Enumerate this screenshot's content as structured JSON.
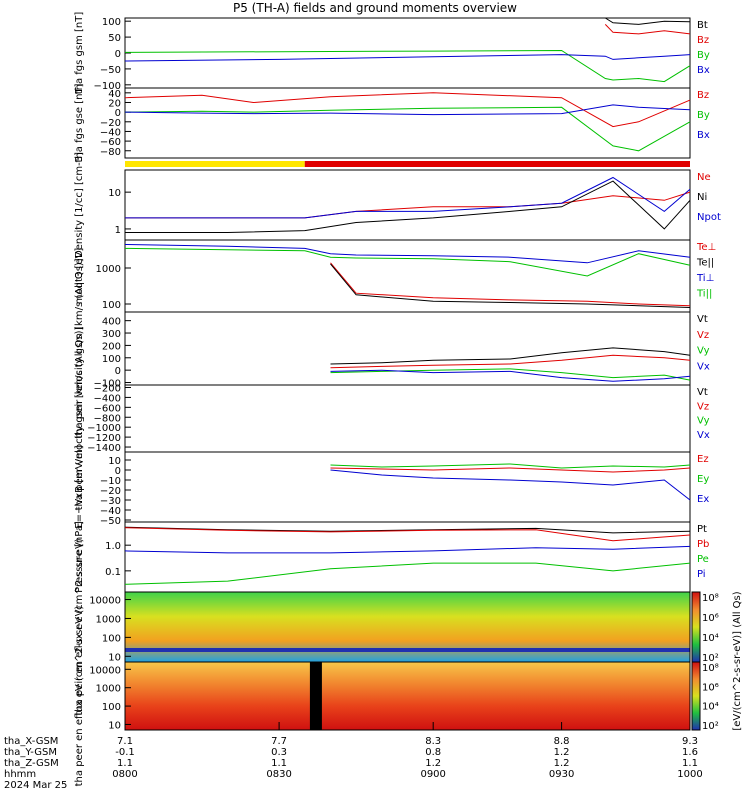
{
  "title": "P5 (TH-A) fields and ground moments overview",
  "chart_data": [
    {
      "type": "line",
      "panel": "fgs_gsm",
      "ylabel": "tha fgs gsm [nT]",
      "yticks": [
        "100",
        "50",
        "0",
        "−50",
        "−100"
      ],
      "ylim": [
        -110,
        110
      ],
      "series": [
        {
          "name": "Bt",
          "color": "#000000",
          "x": [
            7.1,
            7.7,
            8.3,
            8.8,
            8.97,
            9.0,
            9.1,
            9.2,
            9.3
          ],
          "y": [
            null,
            null,
            null,
            null,
            120,
            95,
            90,
            100,
            98
          ]
        },
        {
          "name": "Bz",
          "color": "#e00000",
          "x": [
            7.1,
            7.7,
            8.3,
            8.8,
            8.97,
            9.0,
            9.1,
            9.2,
            9.3
          ],
          "y": [
            null,
            null,
            null,
            null,
            90,
            65,
            60,
            70,
            60
          ]
        },
        {
          "name": "By",
          "color": "#00c000",
          "x": [
            7.1,
            7.7,
            8.3,
            8.8,
            8.97,
            9.0,
            9.1,
            9.2,
            9.3
          ],
          "y": [
            2,
            4,
            6,
            8,
            -80,
            -85,
            -80,
            -90,
            -40
          ]
        },
        {
          "name": "Bx",
          "color": "#0000d0",
          "x": [
            7.1,
            7.7,
            8.3,
            8.8,
            8.97,
            9.0,
            9.1,
            9.2,
            9.3
          ],
          "y": [
            -25,
            -20,
            -12,
            -5,
            -10,
            -20,
            -15,
            -10,
            -5
          ]
        }
      ]
    },
    {
      "type": "line",
      "panel": "fgs_gse",
      "ylabel": "tha fgs gse [nT]",
      "yticks": [
        "40",
        "20",
        "0",
        "−20",
        "−40",
        "−60",
        "−80"
      ],
      "ylim": [
        -95,
        50
      ],
      "series": [
        {
          "name": "Bz",
          "color": "#e00000",
          "x": [
            7.1,
            7.4,
            7.6,
            7.9,
            8.3,
            8.8,
            9.0,
            9.1,
            9.3
          ],
          "y": [
            30,
            35,
            20,
            32,
            40,
            30,
            -30,
            -20,
            25
          ]
        },
        {
          "name": "By",
          "color": "#00c000",
          "x": [
            7.1,
            7.4,
            7.6,
            7.9,
            8.3,
            8.8,
            9.0,
            9.1,
            9.3
          ],
          "y": [
            0,
            2,
            0,
            4,
            8,
            10,
            -70,
            -80,
            -20
          ]
        },
        {
          "name": "Bx",
          "color": "#0000d0",
          "x": [
            7.1,
            7.4,
            7.6,
            7.9,
            8.3,
            8.8,
            9.0,
            9.1,
            9.3
          ],
          "y": [
            0,
            -2,
            -3,
            -2,
            -5,
            -3,
            15,
            10,
            5
          ]
        }
      ]
    },
    {
      "type": "line",
      "panel": "density",
      "ylabel": "Density [1/cc] [cm-3]",
      "scale": "log",
      "yticks": [
        "10",
        "1"
      ],
      "ylim": [
        0.5,
        40
      ],
      "series": [
        {
          "name": "Ne",
          "color": "#e00000",
          "x": [
            7.1,
            7.5,
            7.8,
            8.0,
            8.3,
            8.6,
            8.8,
            9.0,
            9.2,
            9.3
          ],
          "y": [
            2,
            2,
            2,
            3,
            4,
            4,
            5,
            8,
            6,
            10
          ]
        },
        {
          "name": "Ni",
          "color": "#000000",
          "x": [
            7.1,
            7.5,
            7.8,
            8.0,
            8.3,
            8.6,
            8.8,
            9.0,
            9.2,
            9.3
          ],
          "y": [
            0.8,
            0.8,
            0.9,
            1.5,
            2,
            3,
            4,
            20,
            1,
            6
          ]
        },
        {
          "name": "Npot",
          "color": "#0000d0",
          "x": [
            7.1,
            7.5,
            7.8,
            8.0,
            8.3,
            8.6,
            8.8,
            9.0,
            9.2,
            9.3
          ],
          "y": [
            2,
            2,
            2,
            3,
            3,
            4,
            5,
            25,
            3,
            12
          ]
        }
      ]
    },
    {
      "type": "line",
      "panel": "temperature",
      "ylabel": "moqt3 [eV]",
      "scale": "log",
      "yticks": [
        "1000",
        "100"
      ],
      "ylim": [
        60,
        6000
      ],
      "series": [
        {
          "name": "Te⊥",
          "color": "#e00000",
          "x": [
            7.1,
            7.5,
            7.8,
            7.9,
            8.0,
            8.3,
            8.6,
            8.9,
            9.1,
            9.3
          ],
          "y": [
            null,
            null,
            null,
            1400,
            200,
            150,
            130,
            120,
            100,
            90
          ]
        },
        {
          "name": "Te||",
          "color": "#000000",
          "x": [
            7.1,
            7.5,
            7.8,
            7.9,
            8.0,
            8.3,
            8.6,
            8.9,
            9.1,
            9.3
          ],
          "y": [
            null,
            null,
            null,
            1300,
            180,
            120,
            110,
            100,
            90,
            80
          ]
        },
        {
          "name": "Ti⊥",
          "color": "#0000d0",
          "x": [
            7.1,
            7.5,
            7.8,
            7.9,
            8.0,
            8.3,
            8.6,
            8.9,
            9.1,
            9.3
          ],
          "y": [
            4500,
            4000,
            3500,
            2500,
            2300,
            2200,
            2000,
            1400,
            3000,
            2000
          ]
        },
        {
          "name": "Ti||",
          "color": "#00c000",
          "x": [
            7.1,
            7.5,
            7.8,
            7.9,
            8.0,
            8.3,
            8.6,
            8.9,
            9.1,
            9.3
          ],
          "y": [
            3500,
            3200,
            3000,
            2000,
            1900,
            1800,
            1500,
            600,
            2500,
            1200
          ]
        }
      ]
    },
    {
      "type": "line",
      "panel": "peir_velocity",
      "ylabel": "tha peir velocity gsm [km/s (All Qs)]",
      "yticks": [
        "400",
        "300",
        "200",
        "100",
        "0",
        "−100"
      ],
      "ylim": [
        -120,
        470
      ],
      "series": [
        {
          "name": "Vt",
          "color": "#000000",
          "x": [
            7.9,
            8.1,
            8.3,
            8.6,
            8.8,
            9.0,
            9.2,
            9.3
          ],
          "y": [
            50,
            60,
            80,
            90,
            140,
            180,
            150,
            120
          ]
        },
        {
          "name": "Vz",
          "color": "#e00000",
          "x": [
            7.9,
            8.1,
            8.3,
            8.6,
            8.8,
            9.0,
            9.2,
            9.3
          ],
          "y": [
            20,
            30,
            40,
            50,
            80,
            120,
            100,
            80
          ]
        },
        {
          "name": "Vy",
          "color": "#00c000",
          "x": [
            7.9,
            8.1,
            8.3,
            8.6,
            8.8,
            9.0,
            9.2,
            9.3
          ],
          "y": [
            -20,
            -10,
            0,
            10,
            -20,
            -60,
            -40,
            -80
          ]
        },
        {
          "name": "Vx",
          "color": "#0000d0",
          "x": [
            7.9,
            8.1,
            8.3,
            8.6,
            8.8,
            9.0,
            9.2,
            9.3
          ],
          "y": [
            -10,
            0,
            -20,
            -10,
            -60,
            -90,
            -70,
            -50
          ]
        }
      ]
    },
    {
      "type": "line",
      "panel": "peer_velocity",
      "ylabel": "tha peer velocity gsm [km/s (All Qs)]",
      "yticks": [
        "−200",
        "−400",
        "−600",
        "−800",
        "−1000",
        "−1200",
        "−1400"
      ],
      "ylim": [
        -1500,
        -150
      ],
      "series": [
        {
          "name": "Vt",
          "color": "#000000",
          "x": [],
          "y": []
        },
        {
          "name": "Vz",
          "color": "#e00000",
          "x": [],
          "y": []
        },
        {
          "name": "Vy",
          "color": "#00c000",
          "x": [],
          "y": []
        },
        {
          "name": "Vx",
          "color": "#0000d0",
          "x": [],
          "y": []
        }
      ]
    },
    {
      "type": "line",
      "panel": "e_field",
      "ylabel": "E=−VxB [mV/m]",
      "yticks": [
        "10",
        "0",
        "−10",
        "−20",
        "−30",
        "−40",
        "−50"
      ],
      "ylim": [
        -52,
        18
      ],
      "series": [
        {
          "name": "Ez",
          "color": "#e00000",
          "x": [
            7.9,
            8.1,
            8.3,
            8.6,
            8.8,
            9.0,
            9.2,
            9.3
          ],
          "y": [
            2,
            1,
            0,
            2,
            0,
            -2,
            0,
            2
          ]
        },
        {
          "name": "Ey",
          "color": "#00c000",
          "x": [
            7.9,
            8.1,
            8.3,
            8.6,
            8.8,
            9.0,
            9.2,
            9.3
          ],
          "y": [
            5,
            3,
            4,
            6,
            2,
            4,
            3,
            5
          ]
        },
        {
          "name": "Ex",
          "color": "#0000d0",
          "x": [
            7.9,
            8.1,
            8.3,
            8.6,
            8.8,
            9.0,
            9.2,
            9.3
          ],
          "y": [
            0,
            -5,
            -8,
            -10,
            -12,
            -15,
            -10,
            -30
          ]
        }
      ]
    },
    {
      "type": "line",
      "panel": "pressure",
      "ylabel": "Pressure [nPa]",
      "scale": "log",
      "yticks": [
        "1.0",
        "0.1"
      ],
      "ylim": [
        0.015,
        8
      ],
      "series": [
        {
          "name": "Pt",
          "color": "#000000",
          "x": [
            7.1,
            7.5,
            7.9,
            8.3,
            8.7,
            9.0,
            9.3
          ],
          "y": [
            5,
            4,
            3.5,
            4,
            4.5,
            3,
            3.5
          ]
        },
        {
          "name": "Pb",
          "color": "#e00000",
          "x": [
            7.1,
            7.5,
            7.9,
            8.3,
            8.7,
            9.0,
            9.3
          ],
          "y": [
            4.8,
            3.8,
            3.3,
            3.8,
            4,
            1.5,
            2.5
          ]
        },
        {
          "name": "Pe",
          "color": "#00c000",
          "x": [
            7.1,
            7.5,
            7.9,
            8.3,
            8.7,
            9.0,
            9.3
          ],
          "y": [
            0.03,
            0.04,
            0.12,
            0.2,
            0.2,
            0.1,
            0.2
          ]
        },
        {
          "name": "Pi",
          "color": "#0000d0",
          "x": [
            7.1,
            7.5,
            7.9,
            8.3,
            8.7,
            9.0,
            9.3
          ],
          "y": [
            0.6,
            0.5,
            0.5,
            0.6,
            0.8,
            0.7,
            0.9
          ]
        }
      ]
    },
    {
      "type": "heatmap",
      "panel": "peir_spectrogram",
      "ylabel": "tha peir en eflux eV (cm^2-s-sr-eV)",
      "scale": "log",
      "yticks": [
        "10000",
        "1000",
        "100",
        "10"
      ],
      "ylim": [
        5,
        25000
      ]
    },
    {
      "type": "heatmap",
      "panel": "peer_spectrogram",
      "ylabel": "tha peer en eflux eV (cm^2-s-sr-eV)",
      "scale": "log",
      "yticks": [
        "10000",
        "1000",
        "100",
        "10"
      ],
      "ylim": [
        5,
        25000
      ]
    }
  ],
  "colorbar": {
    "label": "[eV/(cm^2-s-sr-eV)]  (All Qs)",
    "ticks_upper": [
      "10⁸",
      "10⁶",
      "10⁴",
      "10²"
    ],
    "ticks_lower": [
      "10⁸",
      "10⁶",
      "10⁴",
      "10²"
    ]
  },
  "status_bar": {
    "segments": [
      {
        "from": 7.1,
        "to": 7.8,
        "color": "#ffe600"
      },
      {
        "from": 7.8,
        "to": 9.3,
        "color": "#e00000"
      }
    ]
  },
  "x_axis": {
    "rows": [
      {
        "label": "tha_X-GSM",
        "values": [
          "7.1",
          "7.7",
          "8.3",
          "8.8",
          "9.3"
        ]
      },
      {
        "label": "tha_Y-GSM",
        "values": [
          "-0.1",
          "0.3",
          "0.8",
          "1.2",
          "1.6"
        ]
      },
      {
        "label": "tha_Z-GSM",
        "values": [
          "1.1",
          "1.1",
          "1.2",
          "1.2",
          "1.1"
        ]
      },
      {
        "label": "hhmm",
        "values": [
          "0800",
          "0830",
          "0900",
          "0930",
          "1000"
        ]
      }
    ],
    "date": "2024 Mar 25"
  }
}
